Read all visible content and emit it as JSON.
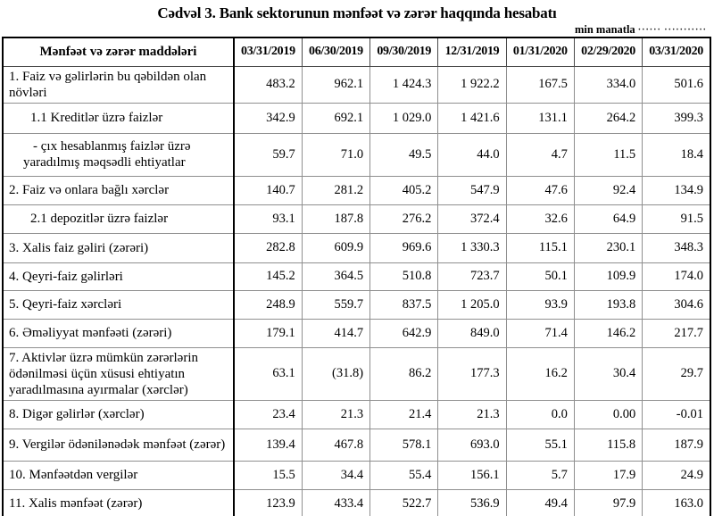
{
  "title": "Cədvəl 3. Bank sektorunun mənfəət və zərər haqqında hesabatı",
  "unit_note": {
    "label": "min manatla",
    "leader": "······ ···········"
  },
  "colors": {
    "text": "#000000",
    "grid_inner": "#8f8f8f",
    "grid_outer": "#000000",
    "background": "#ffffff"
  },
  "table": {
    "columns": [
      "Mənfəət və zərər maddələri",
      "03/31/2019",
      "06/30/2019",
      "09/30/2019",
      "12/31/2019",
      "01/31/2020",
      "02/29/2020",
      "03/31/2020"
    ],
    "rows": [
      {
        "label": "1. Faiz və gəlirlərin bu qəbildən olan növləri",
        "indent": 0,
        "values": [
          "483.2",
          "962.1",
          "1 424.3",
          "1 922.2",
          "167.5",
          "334.0",
          "501.6"
        ]
      },
      {
        "label": "1.1 Kreditlər üzrə faizlər",
        "indent": 1,
        "values": [
          "342.9",
          "692.1",
          "1 029.0",
          "1 421.6",
          "131.1",
          "264.2",
          "399.3"
        ]
      },
      {
        "label": "-  çıx hesablanmış faizlər üzrə yaradılmış məqsədli ehtiyatlar",
        "indent": 2,
        "values": [
          "59.7",
          "71.0",
          "49.5",
          "44.0",
          "4.7",
          "11.5",
          "18.4"
        ]
      },
      {
        "label": "2. Faiz və onlara bağlı xərclər",
        "indent": 0,
        "values": [
          "140.7",
          "281.2",
          "405.2",
          "547.9",
          "47.6",
          "92.4",
          "134.9"
        ]
      },
      {
        "label": "2.1 depozitlər üzrə faizlər",
        "indent": 1,
        "values": [
          "93.1",
          "187.8",
          "276.2",
          "372.4",
          "32.6",
          "64.9",
          "91.5"
        ]
      },
      {
        "label": "3. Xalis faiz gəliri (zərəri)",
        "indent": 0,
        "values": [
          "282.8",
          "609.9",
          "969.6",
          "1 330.3",
          "115.1",
          "230.1",
          "348.3"
        ]
      },
      {
        "label": "4. Qeyri-faiz gəlirləri",
        "indent": 0,
        "values": [
          "145.2",
          "364.5",
          "510.8",
          "723.7",
          "50.1",
          "109.9",
          "174.0"
        ]
      },
      {
        "label": "5. Qeyri-faiz xərcləri",
        "indent": 0,
        "values": [
          "248.9",
          "559.7",
          "837.5",
          "1 205.0",
          "93.9",
          "193.8",
          "304.6"
        ]
      },
      {
        "label": "6. Əməliyyat mənfəəti (zərəri)",
        "indent": 0,
        "values": [
          "179.1",
          "414.7",
          "642.9",
          "849.0",
          "71.4",
          "146.2",
          "217.7"
        ]
      },
      {
        "label": "7. Aktivlər üzrə mümkün zərərlərin ödənilməsi üçün xüsusi ehtiyatın yaradılmasına ayırmalar (xərclər)",
        "indent": 0,
        "values": [
          "63.1",
          "(31.8)",
          "86.2",
          "177.3",
          "16.2",
          "30.4",
          "29.7"
        ]
      },
      {
        "label": "8. Digər gəlirlər (xərclər)",
        "indent": 0,
        "values": [
          "23.4",
          "21.3",
          "21.4",
          "21.3",
          "0.0",
          "0.00",
          "-0.01"
        ]
      },
      {
        "label": "9. Vergilər ödənilənədək mənfəət (zərər)",
        "indent": 0,
        "values": [
          "139.4",
          "467.8",
          "578.1",
          "693.0",
          "55.1",
          "115.8",
          "187.9"
        ]
      },
      {
        "label": "10. Mənfəətdən vergilər",
        "indent": 0,
        "values": [
          "15.5",
          "34.4",
          "55.4",
          "156.1",
          "5.7",
          "17.9",
          "24.9"
        ]
      },
      {
        "label": "11. Xalis mənfəət (zərər)",
        "indent": 0,
        "values": [
          "123.9",
          "433.4",
          "522.7",
          "536.9",
          "49.4",
          "97.9",
          "163.0"
        ]
      }
    ]
  }
}
